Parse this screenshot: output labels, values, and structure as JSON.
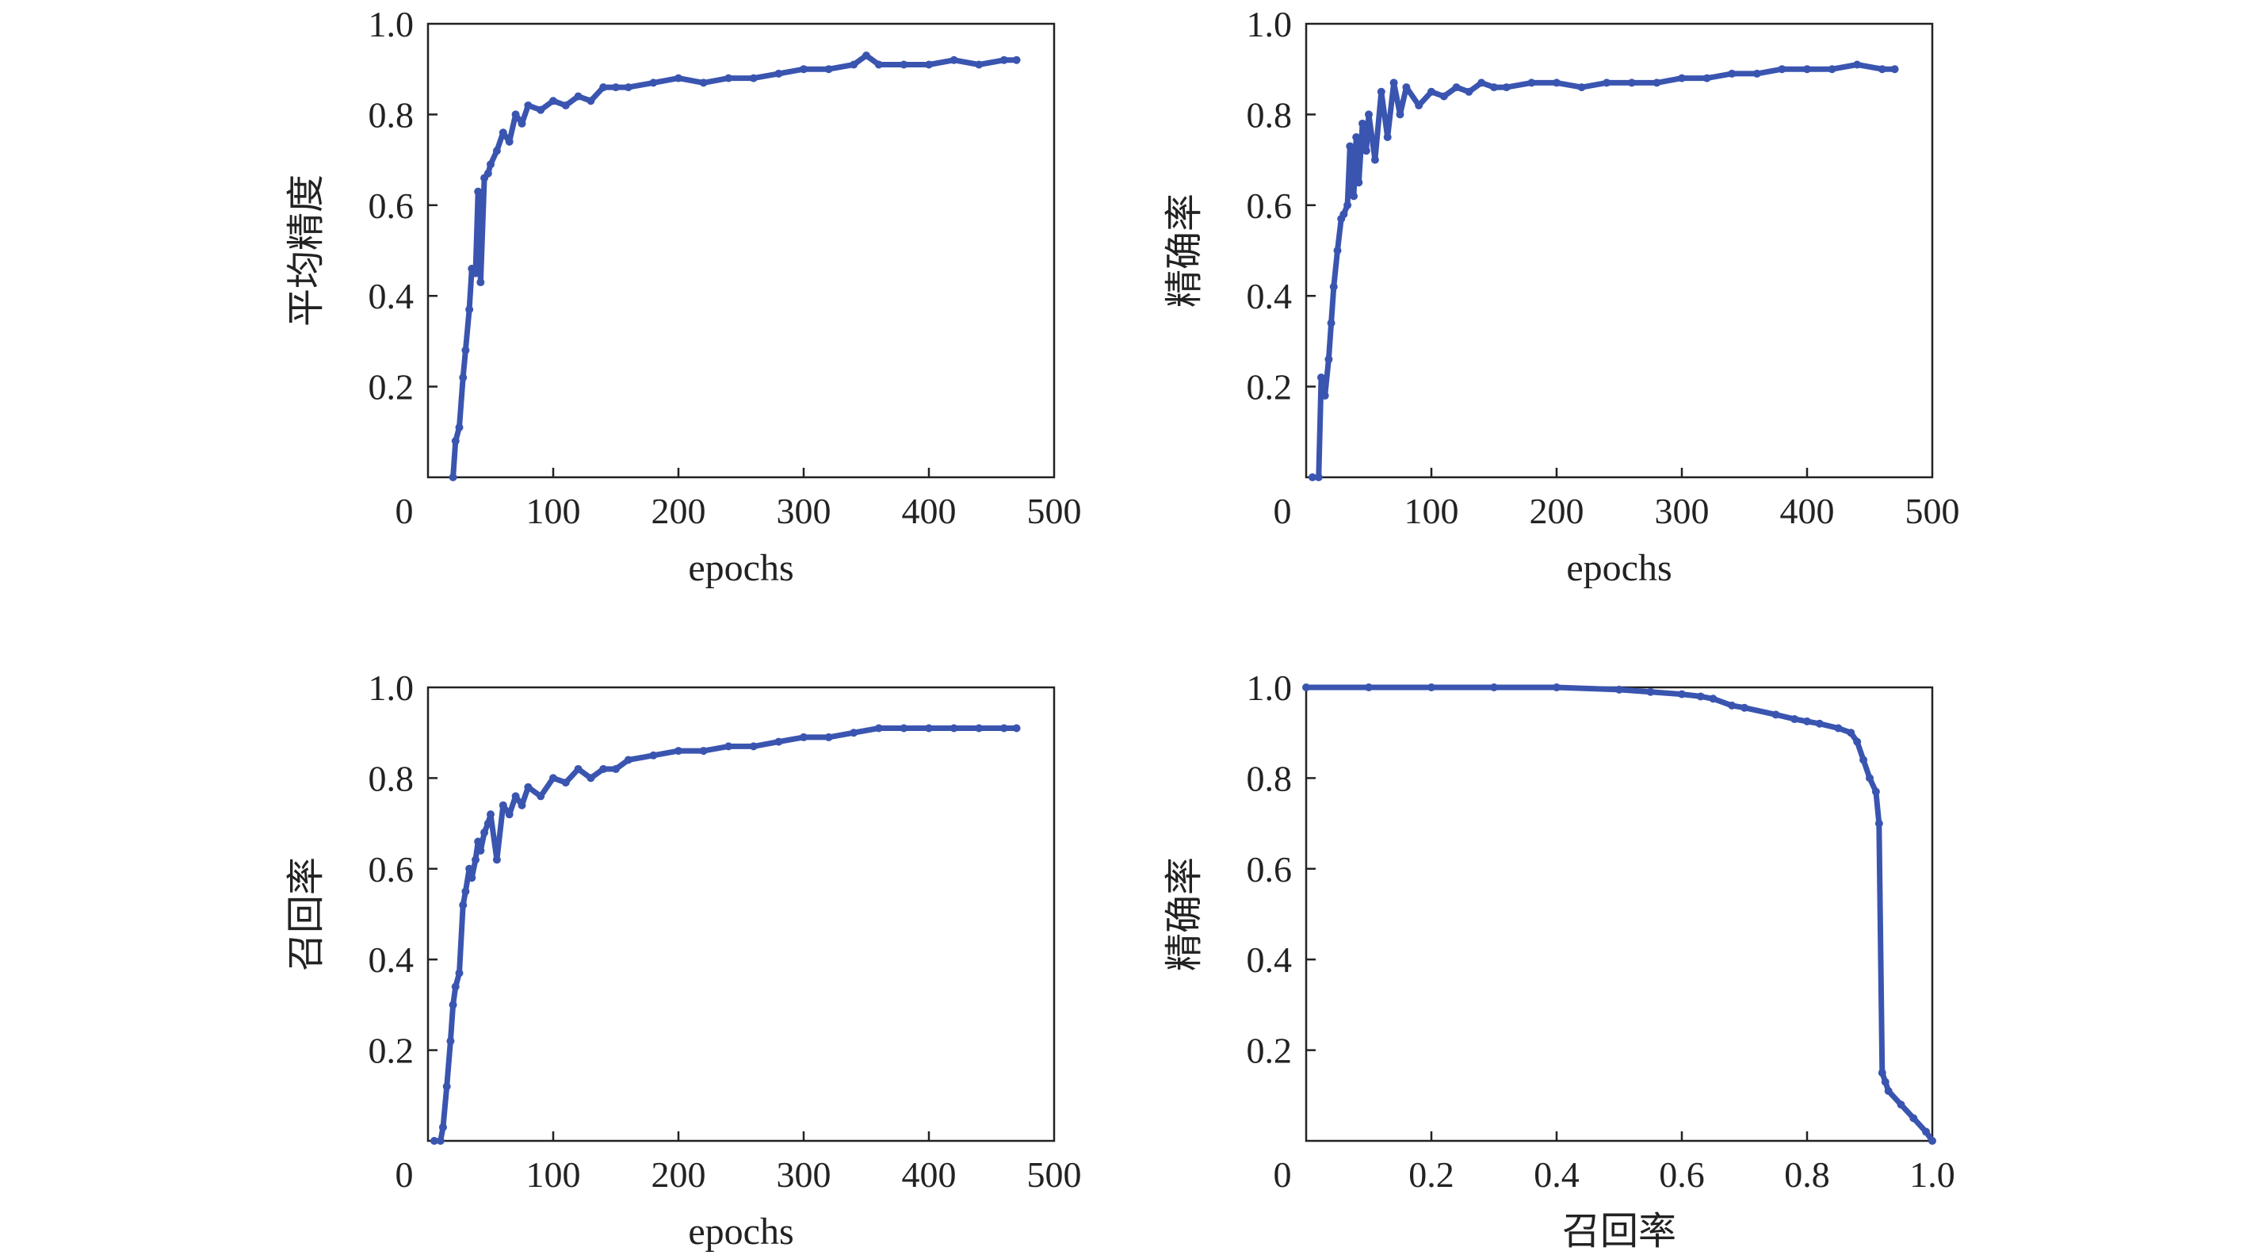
{
  "figure": {
    "line_color": "#3a55b0",
    "frame_color": "#222222",
    "background": "#ffffff"
  },
  "chart_data": [
    {
      "id": "map",
      "type": "line",
      "title": "",
      "xlabel": "epochs",
      "ylabel": "平均精度",
      "xlim": [
        0,
        500
      ],
      "ylim": [
        0,
        1.0
      ],
      "x_ticks": [
        "0",
        "100",
        "200",
        "300",
        "400",
        "500"
      ],
      "y_ticks": [
        "0.2",
        "0.4",
        "0.6",
        "0.8",
        "1.0"
      ],
      "grid": false,
      "series": [
        {
          "x": [
            20,
            22,
            25,
            28,
            30,
            33,
            35,
            38,
            40,
            42,
            45,
            48,
            50,
            55,
            60,
            65,
            70,
            75,
            80,
            90,
            100,
            110,
            120,
            130,
            140,
            150,
            160,
            180,
            200,
            220,
            240,
            260,
            280,
            300,
            320,
            340,
            350,
            360,
            380,
            400,
            420,
            440,
            460,
            470
          ],
          "y": [
            0.0,
            0.08,
            0.11,
            0.22,
            0.28,
            0.37,
            0.46,
            0.45,
            0.63,
            0.43,
            0.66,
            0.67,
            0.69,
            0.72,
            0.76,
            0.74,
            0.8,
            0.78,
            0.82,
            0.81,
            0.83,
            0.82,
            0.84,
            0.83,
            0.86,
            0.86,
            0.86,
            0.87,
            0.88,
            0.87,
            0.88,
            0.88,
            0.89,
            0.9,
            0.9,
            0.91,
            0.93,
            0.91,
            0.91,
            0.91,
            0.92,
            0.91,
            0.92,
            0.92
          ]
        }
      ]
    },
    {
      "id": "precision",
      "type": "line",
      "title": "",
      "xlabel": "epochs",
      "ylabel": "精确率",
      "xlim": [
        0,
        500
      ],
      "ylim": [
        0,
        1.0
      ],
      "x_ticks": [
        "0",
        "100",
        "200",
        "300",
        "400",
        "500"
      ],
      "y_ticks": [
        "0.2",
        "0.4",
        "0.6",
        "0.8",
        "1.0"
      ],
      "grid": false,
      "series": [
        {
          "x": [
            5,
            10,
            12,
            15,
            18,
            20,
            22,
            25,
            28,
            30,
            33,
            35,
            38,
            40,
            42,
            45,
            48,
            50,
            55,
            60,
            65,
            70,
            75,
            80,
            90,
            100,
            110,
            120,
            130,
            140,
            150,
            160,
            180,
            200,
            220,
            240,
            260,
            280,
            300,
            320,
            340,
            360,
            380,
            400,
            420,
            440,
            460,
            470
          ],
          "y": [
            0.0,
            0.0,
            0.22,
            0.18,
            0.26,
            0.34,
            0.42,
            0.5,
            0.57,
            0.58,
            0.6,
            0.73,
            0.62,
            0.75,
            0.65,
            0.78,
            0.72,
            0.8,
            0.7,
            0.85,
            0.75,
            0.87,
            0.8,
            0.86,
            0.82,
            0.85,
            0.84,
            0.86,
            0.85,
            0.87,
            0.86,
            0.86,
            0.87,
            0.87,
            0.86,
            0.87,
            0.87,
            0.87,
            0.88,
            0.88,
            0.89,
            0.89,
            0.9,
            0.9,
            0.9,
            0.91,
            0.9,
            0.9
          ]
        }
      ]
    },
    {
      "id": "recall",
      "type": "line",
      "title": "",
      "xlabel": "epochs",
      "ylabel": "召回率",
      "xlim": [
        0,
        500
      ],
      "ylim": [
        0,
        1.0
      ],
      "x_ticks": [
        "0",
        "100",
        "200",
        "300",
        "400",
        "500"
      ],
      "y_ticks": [
        "0.2",
        "0.4",
        "0.6",
        "0.8",
        "1.0"
      ],
      "grid": false,
      "series": [
        {
          "x": [
            5,
            10,
            12,
            15,
            18,
            20,
            22,
            25,
            28,
            30,
            33,
            35,
            38,
            40,
            42,
            45,
            48,
            50,
            55,
            60,
            65,
            70,
            75,
            80,
            90,
            100,
            110,
            120,
            130,
            140,
            150,
            160,
            180,
            200,
            220,
            240,
            260,
            280,
            300,
            320,
            340,
            360,
            380,
            400,
            420,
            440,
            460,
            470
          ],
          "y": [
            0.0,
            0.0,
            0.03,
            0.12,
            0.22,
            0.3,
            0.34,
            0.37,
            0.52,
            0.55,
            0.6,
            0.58,
            0.62,
            0.66,
            0.64,
            0.68,
            0.7,
            0.72,
            0.62,
            0.74,
            0.72,
            0.76,
            0.74,
            0.78,
            0.76,
            0.8,
            0.79,
            0.82,
            0.8,
            0.82,
            0.82,
            0.84,
            0.85,
            0.86,
            0.86,
            0.87,
            0.87,
            0.88,
            0.89,
            0.89,
            0.9,
            0.91,
            0.91,
            0.91,
            0.91,
            0.91,
            0.91,
            0.91
          ]
        }
      ]
    },
    {
      "id": "pr-curve",
      "type": "line",
      "title": "",
      "xlabel": "召回率",
      "ylabel": "精确率",
      "xlim": [
        0,
        1.0
      ],
      "ylim": [
        0,
        1.0
      ],
      "x_ticks": [
        "0",
        "0.2",
        "0.4",
        "0.6",
        "0.8",
        "1.0"
      ],
      "y_ticks": [
        "0.2",
        "0.4",
        "0.6",
        "0.8",
        "1.0"
      ],
      "grid": false,
      "series": [
        {
          "x": [
            0.0,
            0.1,
            0.2,
            0.3,
            0.4,
            0.5,
            0.55,
            0.6,
            0.63,
            0.65,
            0.68,
            0.7,
            0.75,
            0.78,
            0.8,
            0.82,
            0.85,
            0.87,
            0.88,
            0.89,
            0.9,
            0.91,
            0.915,
            0.92,
            0.925,
            0.93,
            0.95,
            0.97,
            0.99,
            1.0
          ],
          "y": [
            1.0,
            1.0,
            1.0,
            1.0,
            1.0,
            0.995,
            0.99,
            0.985,
            0.98,
            0.975,
            0.96,
            0.955,
            0.94,
            0.93,
            0.925,
            0.92,
            0.91,
            0.9,
            0.88,
            0.84,
            0.8,
            0.77,
            0.7,
            0.15,
            0.13,
            0.11,
            0.08,
            0.05,
            0.02,
            0.0
          ]
        }
      ]
    }
  ]
}
